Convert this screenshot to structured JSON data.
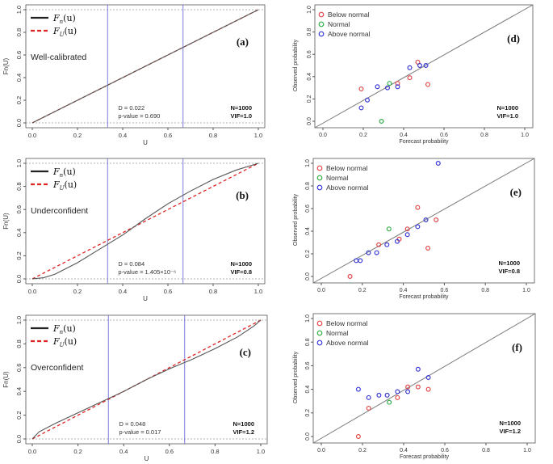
{
  "colors": {
    "empirical": "#222222",
    "uniform": "#e02424",
    "vline": "#6a6ad8",
    "below": "#e24a4a",
    "normal": "#33b04a",
    "above": "#3a3ad6",
    "diag": "#7a7a7a"
  },
  "legend_ecdf": {
    "fn": "F",
    "fn_sub": "n",
    "fu": "F",
    "fu_sub": "U",
    "arg": "(u)"
  },
  "legend_rel": [
    "Below normal",
    "Normal",
    "Above normal"
  ],
  "left_axes": {
    "ylabel": "Fn(U)",
    "xlabel": "U",
    "xticks": [
      "0.0",
      "0.2",
      "0.4",
      "0.6",
      "0.8",
      "1.0"
    ],
    "yticks": [
      "0.0",
      "0.2",
      "0.4",
      "0.6",
      "0.8",
      "1.0"
    ]
  },
  "right_axes": {
    "ylabel": "Observed probability",
    "xlabel": "Forecast probability",
    "xticks": [
      "0.0",
      "0.2",
      "0.4",
      "0.6",
      "0.8",
      "1.0"
    ],
    "yticks": [
      "0.0",
      "0.2",
      "0.4",
      "0.6",
      "0.8",
      "1.0"
    ]
  },
  "chart_data": [
    {
      "id": "a",
      "type": "line",
      "panel_label": "(a)",
      "note": "Well-calibrated",
      "stat_d": "D = 0.022",
      "stat_p": "p-value = 0.690",
      "n": "N=1000",
      "vif": "VIF=1.0",
      "vlines": [
        0.333,
        0.667
      ],
      "xlim": [
        0,
        1
      ],
      "ylim": [
        0,
        1
      ],
      "series": [
        {
          "name": "Fn(u)",
          "x": [
            0,
            0.05,
            0.1,
            0.2,
            0.3,
            0.4,
            0.5,
            0.6,
            0.7,
            0.8,
            0.9,
            1.0
          ],
          "y": [
            0,
            0.05,
            0.1,
            0.2,
            0.3,
            0.4,
            0.5,
            0.6,
            0.7,
            0.8,
            0.9,
            1.0
          ]
        },
        {
          "name": "FU(u)",
          "x": [
            0,
            1
          ],
          "y": [
            0,
            1
          ]
        }
      ]
    },
    {
      "id": "b",
      "type": "line",
      "panel_label": "(b)",
      "note": "Underconfident",
      "stat_d": "D = 0.084",
      "stat_p": "p-value = 1.405×10⁻⁶",
      "n": "N=1000",
      "vif": "VIF=0.8",
      "vlines": [
        0.333,
        0.667
      ],
      "xlim": [
        0,
        1
      ],
      "ylim": [
        0,
        1
      ],
      "series": [
        {
          "name": "Fn(u)",
          "x": [
            0,
            0.05,
            0.1,
            0.2,
            0.3,
            0.4,
            0.5,
            0.6,
            0.7,
            0.8,
            0.9,
            1.0
          ],
          "y": [
            0,
            0.01,
            0.04,
            0.14,
            0.26,
            0.38,
            0.52,
            0.65,
            0.76,
            0.86,
            0.94,
            1.0
          ]
        },
        {
          "name": "FU(u)",
          "x": [
            0,
            1
          ],
          "y": [
            0,
            1
          ]
        }
      ]
    },
    {
      "id": "c",
      "type": "line",
      "panel_label": "(c)",
      "note": "Overconfident",
      "stat_d": "D = 0.048",
      "stat_p": "p-value = 0.017",
      "n": "N=1000",
      "vif": "VIF=1.2",
      "vlines": [
        0.333,
        0.667
      ],
      "xlim": [
        0,
        1
      ],
      "ylim": [
        0,
        1
      ],
      "series": [
        {
          "name": "Fn(u)",
          "x": [
            0,
            0.03,
            0.1,
            0.2,
            0.3,
            0.4,
            0.5,
            0.6,
            0.7,
            0.8,
            0.9,
            0.97,
            1.0
          ],
          "y": [
            0,
            0.06,
            0.13,
            0.22,
            0.31,
            0.4,
            0.5,
            0.59,
            0.67,
            0.76,
            0.86,
            0.95,
            1.0
          ]
        },
        {
          "name": "FU(u)",
          "x": [
            0,
            1
          ],
          "y": [
            0,
            1
          ]
        }
      ]
    },
    {
      "id": "d",
      "type": "scatter",
      "panel_label": "(d)",
      "n": "N=1000",
      "vif": "VIF=1.0",
      "xlim": [
        0,
        1
      ],
      "ylim": [
        0,
        1
      ],
      "series": [
        {
          "name": "Below normal",
          "x": [
            0.19,
            0.37,
            0.43,
            0.47,
            0.52
          ],
          "y": [
            0.29,
            0.34,
            0.39,
            0.53,
            0.33
          ]
        },
        {
          "name": "Normal",
          "x": [
            0.29,
            0.33
          ],
          "y": [
            0.0,
            0.34
          ]
        },
        {
          "name": "Above normal",
          "x": [
            0.19,
            0.22,
            0.27,
            0.32,
            0.37,
            0.43,
            0.48,
            0.51
          ],
          "y": [
            0.12,
            0.19,
            0.31,
            0.3,
            0.31,
            0.48,
            0.5,
            0.5
          ]
        }
      ]
    },
    {
      "id": "e",
      "type": "scatter",
      "panel_label": "(e)",
      "n": "N=1000",
      "vif": "VIF=0.8",
      "xlim": [
        0,
        1
      ],
      "ylim": [
        0,
        1
      ],
      "series": [
        {
          "name": "Below normal",
          "x": [
            0.14,
            0.28,
            0.38,
            0.42,
            0.47,
            0.52,
            0.56
          ],
          "y": [
            0.0,
            0.28,
            0.33,
            0.42,
            0.61,
            0.25,
            0.5
          ]
        },
        {
          "name": "Normal",
          "x": [
            0.33
          ],
          "y": [
            0.42
          ]
        },
        {
          "name": "Above normal",
          "x": [
            0.17,
            0.19,
            0.23,
            0.27,
            0.32,
            0.37,
            0.42,
            0.47,
            0.51,
            0.57
          ],
          "y": [
            0.14,
            0.14,
            0.21,
            0.21,
            0.28,
            0.31,
            0.37,
            0.44,
            0.5,
            1.0
          ]
        }
      ]
    },
    {
      "id": "f",
      "type": "scatter",
      "panel_label": "(f)",
      "n": "N=1000",
      "vif": "VIF=1.2",
      "xlim": [
        0,
        1
      ],
      "ylim": [
        0,
        1
      ],
      "series": [
        {
          "name": "Below normal",
          "x": [
            0.18,
            0.23,
            0.37,
            0.42,
            0.47,
            0.52
          ],
          "y": [
            0.0,
            0.24,
            0.33,
            0.42,
            0.42,
            0.4
          ]
        },
        {
          "name": "Normal",
          "x": [
            0.33
          ],
          "y": [
            0.29
          ]
        },
        {
          "name": "Above normal",
          "x": [
            0.18,
            0.23,
            0.28,
            0.32,
            0.37,
            0.42,
            0.47,
            0.52
          ],
          "y": [
            0.4,
            0.33,
            0.35,
            0.35,
            0.38,
            0.38,
            0.57,
            0.5
          ]
        }
      ]
    }
  ]
}
